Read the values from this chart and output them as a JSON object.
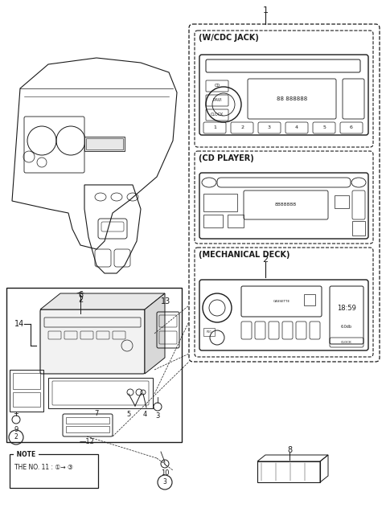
{
  "bg_color": "#ffffff",
  "line_color": "#1a1a1a",
  "section_wcdc": "(W/CDC JACK)",
  "section_cd": "(CD PLAYER)",
  "section_mech": "(MECHANICAL DECK)",
  "note_line1": "NOTE",
  "note_line2": "THE NO. 11 : ①→ ③"
}
